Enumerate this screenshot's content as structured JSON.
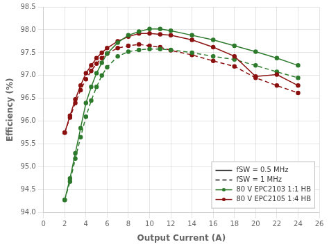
{
  "chart_data": {
    "type": "line",
    "xlabel": "Output Current (A)",
    "ylabel": "Efficiency (%)",
    "xlim": [
      0,
      26
    ],
    "ylim": [
      94.0,
      98.5
    ],
    "xticks": [
      0,
      2,
      4,
      6,
      8,
      10,
      12,
      14,
      16,
      18,
      20,
      22,
      24,
      26
    ],
    "yticks": [
      {
        "value": 94.0,
        "label": "94.0"
      },
      {
        "value": 94.5,
        "label": "94.5"
      },
      {
        "value": 95.0,
        "label": "95.0"
      },
      {
        "value": 95.5,
        "label": "95.5"
      },
      {
        "value": 96.0,
        "label": "96.0"
      },
      {
        "value": 96.5,
        "label": "96.5"
      },
      {
        "value": 97.0,
        "label": "97.0"
      },
      {
        "value": 97.5,
        "label": "97.5"
      },
      {
        "value": 98.0,
        "label": "98.0"
      },
      {
        "value": 98.5,
        "label": "98.5"
      }
    ],
    "grid": true,
    "legend": "lower right",
    "x": [
      2,
      2.5,
      3,
      3.5,
      4,
      4.5,
      5,
      5.5,
      6,
      7,
      8,
      9,
      10,
      11,
      12,
      14,
      16,
      18,
      20,
      22,
      24
    ],
    "series": [
      {
        "color": "#2d7a2d",
        "line_style": "solid",
        "marker": "circle",
        "values": [
          94.28,
          94.75,
          95.3,
          95.85,
          96.4,
          96.75,
          97.05,
          97.28,
          97.48,
          97.72,
          97.88,
          97.96,
          98.02,
          98.02,
          97.98,
          97.88,
          97.78,
          97.65,
          97.52,
          97.38,
          97.22
        ]
      },
      {
        "color": "#8b1010",
        "line_style": "solid",
        "marker": "circle",
        "values": [
          95.75,
          96.12,
          96.48,
          96.78,
          97.05,
          97.22,
          97.38,
          97.5,
          97.6,
          97.75,
          97.85,
          97.92,
          97.92,
          97.9,
          97.88,
          97.78,
          97.62,
          97.42,
          96.98,
          97.02,
          96.78
        ]
      },
      {
        "color": "#2d7a2d",
        "line_style": "dashed",
        "marker": "circle",
        "values": [
          94.28,
          94.68,
          95.18,
          95.65,
          96.1,
          96.45,
          96.75,
          97.0,
          97.18,
          97.42,
          97.52,
          97.56,
          97.58,
          97.58,
          97.56,
          97.5,
          97.42,
          97.35,
          97.22,
          97.08,
          96.95
        ]
      },
      {
        "color": "#8b1010",
        "line_style": "dashed",
        "marker": "circle",
        "values": [
          95.75,
          96.08,
          96.4,
          96.68,
          96.92,
          97.1,
          97.26,
          97.38,
          97.48,
          97.6,
          97.65,
          97.68,
          97.65,
          97.62,
          97.55,
          97.45,
          97.32,
          97.2,
          96.95,
          96.78,
          96.62
        ]
      }
    ],
    "legend_entries": [
      {
        "name": "fSW = 0.5 MHz",
        "color": "#111111",
        "line_style": "solid"
      },
      {
        "name": "fSW = 1 MHz",
        "color": "#111111",
        "line_style": "dashed"
      },
      {
        "name": "80 V EPC2103 1:1 HB",
        "color": "#2d7a2d",
        "line_style": "solid",
        "marker": "circle"
      },
      {
        "name": "80 V EPC2105 1:4 HB",
        "color": "#8b1010",
        "line_style": "solid",
        "marker": "circle"
      }
    ]
  }
}
